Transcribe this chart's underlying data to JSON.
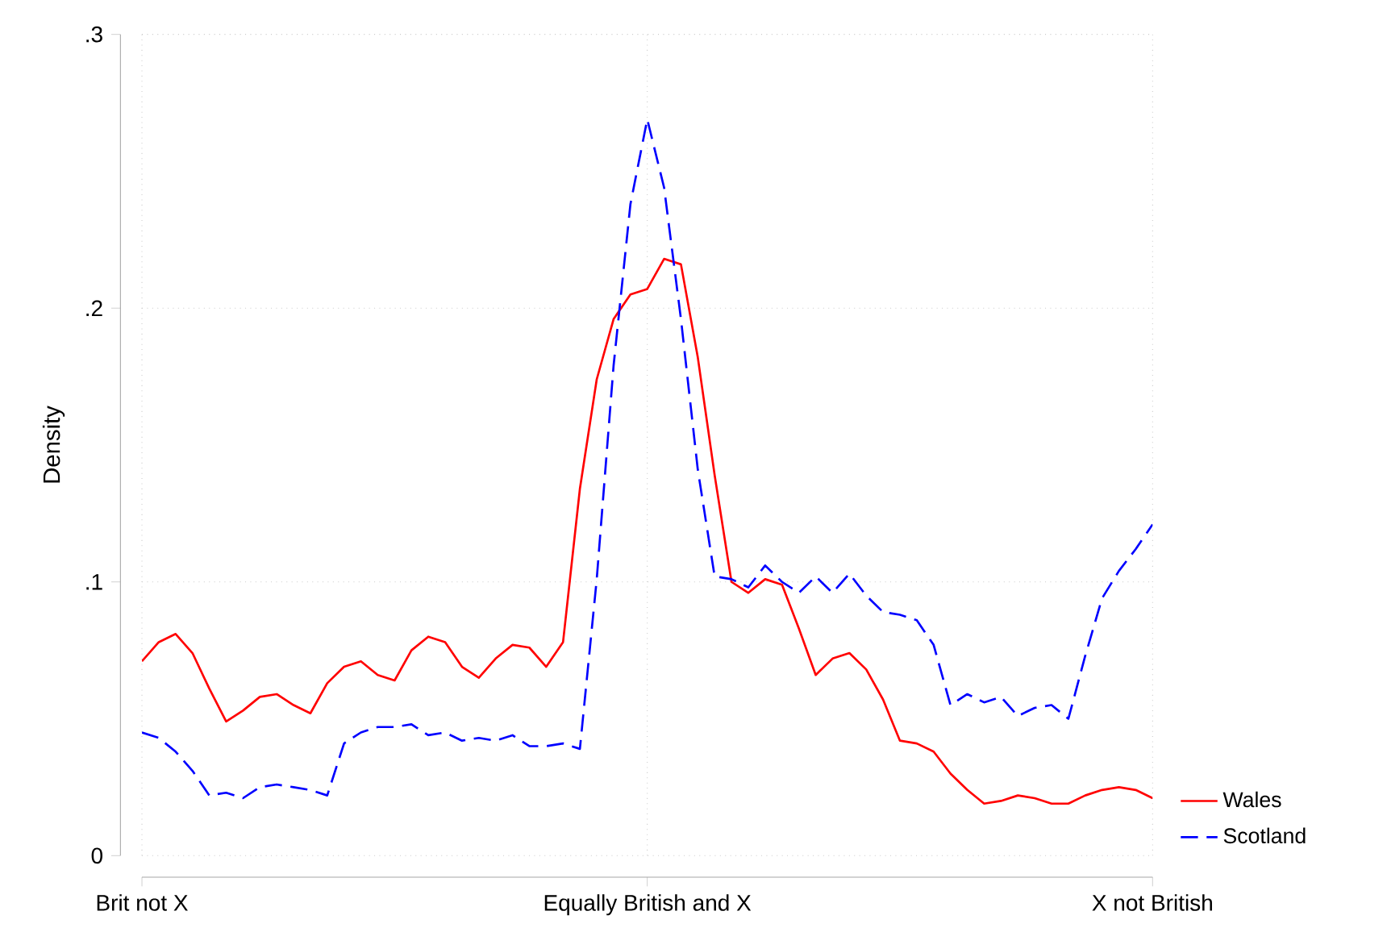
{
  "chart_data": {
    "type": "line",
    "ylabel": "Density",
    "categories": [
      "Brit not X",
      null,
      null,
      null,
      null,
      null,
      null,
      null,
      null,
      null,
      null,
      null,
      null,
      null,
      null,
      null,
      null,
      null,
      null,
      null,
      null,
      null,
      null,
      null,
      null,
      null,
      null,
      null,
      null,
      null,
      "Equally British and X",
      null,
      null,
      null,
      null,
      null,
      null,
      null,
      null,
      null,
      null,
      null,
      null,
      null,
      null,
      null,
      null,
      null,
      null,
      null,
      null,
      null,
      null,
      null,
      null,
      null,
      null,
      null,
      null,
      null,
      "X not British"
    ],
    "ylim": [
      0,
      0.3
    ],
    "yticks": [
      {
        "value": 0,
        "label": "0"
      },
      {
        "value": 0.1,
        "label": ".1"
      },
      {
        "value": 0.2,
        "label": ".2"
      },
      {
        "value": 0.3,
        "label": ".3"
      }
    ],
    "grid": true,
    "legend": "bottom right",
    "marker": "none",
    "series": [
      {
        "name": "Wales",
        "color": "#ff0000",
        "line_style": "solid",
        "values": [
          0.071,
          0.078,
          0.081,
          0.074,
          0.061,
          0.049,
          0.053,
          0.058,
          0.059,
          0.055,
          0.052,
          0.063,
          0.069,
          0.071,
          0.066,
          0.064,
          0.075,
          0.08,
          0.078,
          0.069,
          0.065,
          0.072,
          0.077,
          0.076,
          0.069,
          0.078,
          0.134,
          0.174,
          0.196,
          0.205,
          0.207,
          0.218,
          0.216,
          0.182,
          0.139,
          0.1,
          0.096,
          0.101,
          0.099,
          0.083,
          0.066,
          0.072,
          0.074,
          0.068,
          0.057,
          0.042,
          0.041,
          0.038,
          0.03,
          0.024,
          0.019,
          0.02,
          0.022,
          0.021,
          0.019,
          0.019,
          0.022,
          0.024,
          0.025,
          0.024,
          0.021
        ]
      },
      {
        "name": "Scotland",
        "color": "#0000ff",
        "line_style": "dashed",
        "values": [
          0.045,
          0.043,
          0.038,
          0.031,
          0.022,
          0.023,
          0.021,
          0.025,
          0.026,
          0.025,
          0.024,
          0.022,
          0.041,
          0.045,
          0.047,
          0.047,
          0.048,
          0.044,
          0.045,
          0.042,
          0.043,
          0.042,
          0.044,
          0.04,
          0.04,
          0.041,
          0.039,
          0.101,
          0.179,
          0.238,
          0.269,
          0.244,
          0.196,
          0.141,
          0.102,
          0.101,
          0.098,
          0.106,
          0.1,
          0.096,
          0.102,
          0.096,
          0.103,
          0.095,
          0.089,
          0.088,
          0.086,
          0.077,
          0.055,
          0.059,
          0.056,
          0.058,
          0.051,
          0.054,
          0.055,
          0.05,
          0.073,
          0.094,
          0.104,
          0.112,
          0.121
        ]
      }
    ]
  }
}
